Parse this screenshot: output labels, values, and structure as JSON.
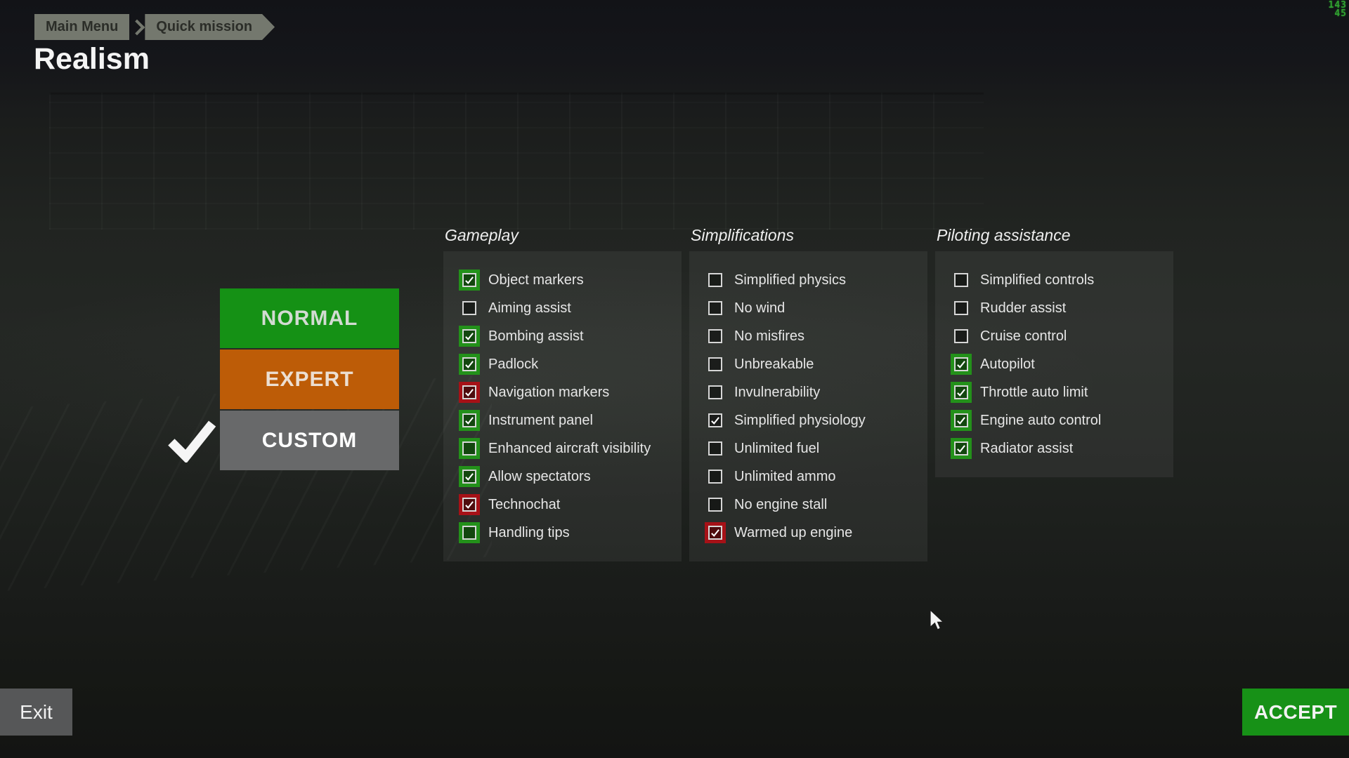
{
  "page": {
    "title": "Realism"
  },
  "hud": {
    "fps_line1": "143",
    "fps_line2": "45"
  },
  "breadcrumb": {
    "items": [
      "Main Menu",
      "Quick mission"
    ]
  },
  "presets": [
    {
      "label": "NORMAL",
      "selected": false
    },
    {
      "label": "EXPERT",
      "selected": false
    },
    {
      "label": "CUSTOM",
      "selected": true
    }
  ],
  "columns": [
    {
      "title": "Gameplay",
      "items": [
        {
          "label": "Object markers",
          "checked": true,
          "surround": "green"
        },
        {
          "label": "Aiming assist",
          "checked": false,
          "surround": "none"
        },
        {
          "label": "Bombing assist",
          "checked": true,
          "surround": "green"
        },
        {
          "label": "Padlock",
          "checked": true,
          "surround": "green"
        },
        {
          "label": "Navigation markers",
          "checked": true,
          "surround": "red"
        },
        {
          "label": "Instrument panel",
          "checked": true,
          "surround": "green"
        },
        {
          "label": "Enhanced aircraft visibility",
          "checked": false,
          "surround": "green"
        },
        {
          "label": "Allow spectators",
          "checked": true,
          "surround": "green"
        },
        {
          "label": "Technochat",
          "checked": true,
          "surround": "red"
        },
        {
          "label": "Handling tips",
          "checked": false,
          "surround": "green"
        }
      ]
    },
    {
      "title": "Simplifications",
      "items": [
        {
          "label": "Simplified physics",
          "checked": false,
          "surround": "none"
        },
        {
          "label": "No wind",
          "checked": false,
          "surround": "none"
        },
        {
          "label": "No misfires",
          "checked": false,
          "surround": "none"
        },
        {
          "label": "Unbreakable",
          "checked": false,
          "surround": "none"
        },
        {
          "label": "Invulnerability",
          "checked": false,
          "surround": "none"
        },
        {
          "label": "Simplified physiology",
          "checked": true,
          "surround": "none"
        },
        {
          "label": "Unlimited fuel",
          "checked": false,
          "surround": "none"
        },
        {
          "label": "Unlimited ammo",
          "checked": false,
          "surround": "none"
        },
        {
          "label": "No engine stall",
          "checked": false,
          "surround": "none"
        },
        {
          "label": "Warmed up engine",
          "checked": true,
          "surround": "red"
        }
      ]
    },
    {
      "title": "Piloting assistance",
      "items": [
        {
          "label": "Simplified controls",
          "checked": false,
          "surround": "none"
        },
        {
          "label": "Rudder assist",
          "checked": false,
          "surround": "none"
        },
        {
          "label": "Cruise control",
          "checked": false,
          "surround": "none"
        },
        {
          "label": "Autopilot",
          "checked": true,
          "surround": "green"
        },
        {
          "label": "Throttle auto limit",
          "checked": true,
          "surround": "green"
        },
        {
          "label": "Engine auto control",
          "checked": true,
          "surround": "green"
        },
        {
          "label": "Radiator assist",
          "checked": true,
          "surround": "green"
        }
      ]
    }
  ],
  "footer": {
    "exit_label": "Exit",
    "accept_label": "ACCEPT"
  },
  "theme": {
    "accent_green": "#23911a",
    "accent_red": "#a61117",
    "preset_normal": "#159115",
    "preset_expert": "#bd5c07",
    "preset_custom": "#68696a",
    "accept_green": "#179117",
    "exit_gray": "#565758",
    "breadcrumb_bg": "#74786e",
    "fps_green": "#31a231"
  }
}
